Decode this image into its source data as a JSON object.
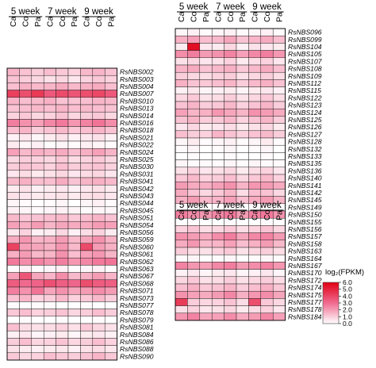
{
  "chart_data": [
    {
      "type": "heatmap",
      "group_labels": [
        "5 week",
        "7 week",
        "9 week"
      ],
      "columns": [
        "Ca",
        "Co",
        "Pa",
        "Ca",
        "Co",
        "Pa",
        "Ca",
        "Co",
        "Pa"
      ],
      "rows": [
        "RsNBS002",
        "RsNBS003",
        "RsNBS004",
        "RsNBS007",
        "RsNBS010",
        "RsNBS013",
        "RsNBS014",
        "RsNBS016",
        "RsNBS018",
        "RsNBS021",
        "RsNBS022",
        "RsNBS024",
        "RsNBS025",
        "RsNBS030",
        "RsNBS031",
        "RsNBS041",
        "RsNBS042",
        "RsNBS043",
        "RsNBS044",
        "RsNBS045",
        "RsNBS051",
        "RsNBS054",
        "RsNBS056",
        "RsNBS059",
        "RsNBS060",
        "RsNBS061",
        "RsNBS062",
        "RsNBS063",
        "RsNBS067",
        "RsNBS068",
        "RsNBS071",
        "RsNBS073",
        "RsNBS077",
        "RsNBS078",
        "RsNBS079",
        "RsNBS081",
        "RsNBS084",
        "RsNBS086",
        "RsNBS088",
        "RsNBS090"
      ],
      "values": [
        [
          1.5,
          1.2,
          1.0,
          1.3,
          1.1,
          0.9,
          1.4,
          1.5,
          1.2
        ],
        [
          1.2,
          1.0,
          0.8,
          0.6,
          0.8,
          0.5,
          0.9,
          1.1,
          0.9
        ],
        [
          1.3,
          1.6,
          1.4,
          1.5,
          1.7,
          1.4,
          1.6,
          1.7,
          1.3
        ],
        [
          4.2,
          3.8,
          4.4,
          3.5,
          3.9,
          3.6,
          3.8,
          4.0,
          3.5
        ],
        [
          1.5,
          1.3,
          1.4,
          1.6,
          1.2,
          1.2,
          1.3,
          1.5,
          1.4
        ],
        [
          1.2,
          1.3,
          1.4,
          1.3,
          1.5,
          1.3,
          1.4,
          1.3,
          1.2
        ],
        [
          0.9,
          1.1,
          0.8,
          0.9,
          1.2,
          0.8,
          1.0,
          1.1,
          0.8
        ],
        [
          2.6,
          2.2,
          1.9,
          2.4,
          2.7,
          2.1,
          2.5,
          2.8,
          2.3
        ],
        [
          1.3,
          1.5,
          1.0,
          1.2,
          1.4,
          1.1,
          1.3,
          1.5,
          1.2
        ],
        [
          0.3,
          0.5,
          0.2,
          0.4,
          0.6,
          0.3,
          0.5,
          0.6,
          0.3
        ],
        [
          0.4,
          0.2,
          0.3,
          0.1,
          0.2,
          0.1,
          0.3,
          0.2,
          0.1
        ],
        [
          1.9,
          1.4,
          1.6,
          1.5,
          1.7,
          1.3,
          1.6,
          1.9,
          1.5
        ],
        [
          0.8,
          1.0,
          0.9,
          0.8,
          1.1,
          0.7,
          0.9,
          1.1,
          0.8
        ],
        [
          1.0,
          1.2,
          1.1,
          0.9,
          1.3,
          1.0,
          1.1,
          1.2,
          0.9
        ],
        [
          0.5,
          0.7,
          0.4,
          0.6,
          0.8,
          0.5,
          0.7,
          0.8,
          0.5
        ],
        [
          1.4,
          1.6,
          1.3,
          1.3,
          1.7,
          1.2,
          1.5,
          1.6,
          1.4
        ],
        [
          0.4,
          0.6,
          0.3,
          0.4,
          0.5,
          0.3,
          0.5,
          0.6,
          0.4
        ],
        [
          0.6,
          0.5,
          0.4,
          0.5,
          0.6,
          0.4,
          0.6,
          0.7,
          0.5
        ],
        [
          0.2,
          0.1,
          0.0,
          0.1,
          0.2,
          0.0,
          0.2,
          0.3,
          0.1
        ],
        [
          0.3,
          0.2,
          0.1,
          0.2,
          0.3,
          0.2,
          0.1,
          0.2,
          0.2
        ],
        [
          1.4,
          1.1,
          1.2,
          1.3,
          1.4,
          1.1,
          1.3,
          1.5,
          1.2
        ],
        [
          1.9,
          1.6,
          2.0,
          1.5,
          1.8,
          1.7,
          1.7,
          2.0,
          1.9
        ],
        [
          0.5,
          0.9,
          0.3,
          0.4,
          0.8,
          0.3,
          0.7,
          0.9,
          0.4
        ],
        [
          1.7,
          2.1,
          1.5,
          1.6,
          2.0,
          1.4,
          1.8,
          2.2,
          1.6
        ],
        [
          4.1,
          1.9,
          1.8,
          1.6,
          2.1,
          1.4,
          3.9,
          2.0,
          1.6
        ],
        [
          1.6,
          2.0,
          1.4,
          1.5,
          2.2,
          1.3,
          1.9,
          2.1,
          1.5
        ],
        [
          2.7,
          2.3,
          2.5,
          2.2,
          2.6,
          2.1,
          2.4,
          2.7,
          2.8
        ],
        [
          0.1,
          0.3,
          0.1,
          0.2,
          0.3,
          0.1,
          0.2,
          0.3,
          0.1
        ],
        [
          1.9,
          3.6,
          1.8,
          1.5,
          2.3,
          1.4,
          1.6,
          2.0,
          1.5
        ],
        [
          3.4,
          3.0,
          3.2,
          3.7,
          3.3,
          3.1,
          3.8,
          3.4,
          3.3
        ],
        [
          2.6,
          2.2,
          2.8,
          1.8,
          2.2,
          1.8,
          2.0,
          2.3,
          2.0
        ],
        [
          1.2,
          1.5,
          0.9,
          1.0,
          1.4,
          0.9,
          1.1,
          1.4,
          1.0
        ],
        [
          0.1,
          0.0,
          0.1,
          0.1,
          0.0,
          0.0,
          0.1,
          0.0,
          0.0
        ],
        [
          1.1,
          1.3,
          0.9,
          1.0,
          1.2,
          0.8,
          1.0,
          1.3,
          1.0
        ],
        [
          0.0,
          0.1,
          0.0,
          0.0,
          0.1,
          0.0,
          0.0,
          0.1,
          0.0
        ],
        [
          1.3,
          0.7,
          0.6,
          0.7,
          0.9,
          0.6,
          1.1,
          0.8,
          0.6
        ],
        [
          0.3,
          0.5,
          0.2,
          0.3,
          0.4,
          0.2,
          0.4,
          0.5,
          0.3
        ],
        [
          1.0,
          1.3,
          0.8,
          0.9,
          1.2,
          0.8,
          1.0,
          1.3,
          0.9
        ],
        [
          0.6,
          0.4,
          0.3,
          0.4,
          0.5,
          0.3,
          0.6,
          0.7,
          0.5
        ],
        [
          1.1,
          0.8,
          0.9,
          1.3,
          1.1,
          1.0,
          1.2,
          1.5,
          1.1
        ]
      ]
    },
    {
      "type": "heatmap",
      "group_labels": [
        "5 week",
        "7 week",
        "9 week"
      ],
      "columns": [
        "Ca",
        "Co",
        "Pa",
        "Ca",
        "Co",
        "Pa",
        "Ca",
        "Co",
        "Pa"
      ],
      "rows": [
        "RsNBS096",
        "RsNBS099",
        "RsNBS104",
        "RsNBS105",
        "RsNBS107",
        "RsNBS108",
        "RsNBS109",
        "RsNBS112",
        "RsNBS115",
        "RsNBS122",
        "RsNBS123",
        "RsNBS124",
        "RsNBS125",
        "RsNBS126",
        "RsNBS127",
        "RsNBS128",
        "RsNBS132",
        "RsNBS133",
        "RsNBS135",
        "RsNBS136",
        "RsNBS140",
        "RsNBS141",
        "RsNBS142",
        "RsNBS145",
        "RsNBS149",
        "RsNBS150",
        "RsNBS155",
        "RsNBS156",
        "RsNBS157",
        "RsNBS158",
        "RsNBS163",
        "RsNBS164",
        "RsNBS167",
        "RsNBS170",
        "RsNBS172",
        "RsNBS174",
        "RsNBS175",
        "RsNBS177",
        "RsNBS178",
        "RsNBS184"
      ],
      "values": [
        [
          0.2,
          0.3,
          0.1,
          0.2,
          0.3,
          0.1,
          0.2,
          0.3,
          0.1
        ],
        [
          1.6,
          1.9,
          1.3,
          1.4,
          1.8,
          1.2,
          1.5,
          1.7,
          1.3
        ],
        [
          0.4,
          5.6,
          0.5,
          0.4,
          0.8,
          0.3,
          0.6,
          0.5,
          0.4
        ],
        [
          2.3,
          2.6,
          2.0,
          2.2,
          2.5,
          1.9,
          2.4,
          2.6,
          2.1
        ],
        [
          0.6,
          0.8,
          0.5,
          0.6,
          0.9,
          0.4,
          0.7,
          0.9,
          0.5
        ],
        [
          1.5,
          1.7,
          1.2,
          1.4,
          1.6,
          1.1,
          1.4,
          1.7,
          1.3
        ],
        [
          1.0,
          0.8,
          0.7,
          0.9,
          1.0,
          0.6,
          0.8,
          1.0,
          0.7
        ],
        [
          1.6,
          1.2,
          1.1,
          1.3,
          1.5,
          1.0,
          1.4,
          1.6,
          1.2
        ],
        [
          0.3,
          0.5,
          0.2,
          0.3,
          0.4,
          0.2,
          0.4,
          0.5,
          0.3
        ],
        [
          0.8,
          1.1,
          0.6,
          0.7,
          1.0,
          0.6,
          0.8,
          1.1,
          0.7
        ],
        [
          1.2,
          1.5,
          1.0,
          1.1,
          1.4,
          0.9,
          1.2,
          1.5,
          1.0
        ],
        [
          1.9,
          1.5,
          1.6,
          2.1,
          1.8,
          1.5,
          2.2,
          2.0,
          1.7
        ],
        [
          1.2,
          1.5,
          1.0,
          1.1,
          1.4,
          0.9,
          1.2,
          1.5,
          1.0
        ],
        [
          0.5,
          0.8,
          0.4,
          0.5,
          0.7,
          0.4,
          0.6,
          0.8,
          0.4
        ],
        [
          1.3,
          1.0,
          0.9,
          1.5,
          1.2,
          0.9,
          1.2,
          1.4,
          1.0
        ],
        [
          0.2,
          0.4,
          0.1,
          0.2,
          0.3,
          0.1,
          0.2,
          0.4,
          0.1
        ],
        [
          0.1,
          0.2,
          0.0,
          0.1,
          0.2,
          0.0,
          0.1,
          0.2,
          0.0
        ],
        [
          0.0,
          0.1,
          0.0,
          0.0,
          0.1,
          0.0,
          0.0,
          0.1,
          0.0
        ],
        [
          0.2,
          0.1,
          0.1,
          0.1,
          0.2,
          0.1,
          0.2,
          0.1,
          0.1
        ],
        [
          0.6,
          0.9,
          0.5,
          0.6,
          0.8,
          0.4,
          0.7,
          0.9,
          0.5
        ],
        [
          1.1,
          1.4,
          0.9,
          1.0,
          1.3,
          0.8,
          1.1,
          1.4,
          0.9
        ],
        [
          2.0,
          1.7,
          1.6,
          1.9,
          2.2,
          1.5,
          2.1,
          2.0,
          1.7
        ],
        [
          1.7,
          1.2,
          0.8,
          1.1,
          1.5,
          0.7,
          1.3,
          1.2,
          0.8
        ],
        [
          1.6,
          2.0,
          1.4,
          1.5,
          1.9,
          1.3,
          1.7,
          2.0,
          1.5
        ],
        [
          0.1,
          0.1,
          0.0,
          0.1,
          0.2,
          0.0,
          0.1,
          0.2,
          0.1
        ],
        [
          2.6,
          2.3,
          2.1,
          2.4,
          2.7,
          2.0,
          2.5,
          2.7,
          2.2
        ],
        [
          0.0,
          0.1,
          0.0,
          0.0,
          0.1,
          0.0,
          0.0,
          0.1,
          0.0
        ],
        [
          0.9,
          1.2,
          0.7,
          0.8,
          1.1,
          0.7,
          0.9,
          1.2,
          0.8
        ],
        [
          2.2,
          2.0,
          1.7,
          2.3,
          2.6,
          1.8,
          2.4,
          2.5,
          2.0
        ],
        [
          1.7,
          2.1,
          1.4,
          1.5,
          1.9,
          1.3,
          1.6,
          2.0,
          1.4
        ],
        [
          1.0,
          0.7,
          0.6,
          0.9,
          1.1,
          0.6,
          0.8,
          1.0,
          0.7
        ],
        [
          0.1,
          0.2,
          0.0,
          0.1,
          0.2,
          0.0,
          0.1,
          0.2,
          0.1
        ],
        [
          2.5,
          2.1,
          1.9,
          2.4,
          2.6,
          2.0,
          2.3,
          2.5,
          2.1
        ],
        [
          0.3,
          0.5,
          0.2,
          0.4,
          0.5,
          0.2,
          0.3,
          0.5,
          0.2
        ],
        [
          0.8,
          1.1,
          0.6,
          0.7,
          1.0,
          0.6,
          0.8,
          1.0,
          0.7
        ],
        [
          1.3,
          1.6,
          1.1,
          1.2,
          1.5,
          1.0,
          1.3,
          1.6,
          1.1
        ],
        [
          2.2,
          1.9,
          1.7,
          2.0,
          2.4,
          1.6,
          2.1,
          2.3,
          1.8
        ],
        [
          4.3,
          1.0,
          0.8,
          0.9,
          1.2,
          0.7,
          3.8,
          1.1,
          0.8
        ],
        [
          0.6,
          0.9,
          0.5,
          0.6,
          0.8,
          0.4,
          0.7,
          0.9,
          0.5
        ],
        [
          2.1,
          2.5,
          1.8,
          1.9,
          2.3,
          1.7,
          2.0,
          2.4,
          1.9
        ]
      ]
    }
  ],
  "colorbar": {
    "title": "log₂(FPKM)",
    "ticks": [
      "6.0",
      "5.0",
      "4.0",
      "3.0",
      "2.0",
      "1.0",
      "0.0"
    ],
    "min": 0,
    "max": 6,
    "colors": {
      "low": "#ffffff",
      "mid": "#f06a90",
      "high": "#e00012"
    }
  },
  "second_header_groups": [
    "5 week",
    "7 week",
    "9 week"
  ],
  "second_header_columns": [
    "Ca",
    "Co",
    "Pa",
    "Ca",
    "Co",
    "Pa",
    "Ca",
    "Co",
    "Pa"
  ]
}
